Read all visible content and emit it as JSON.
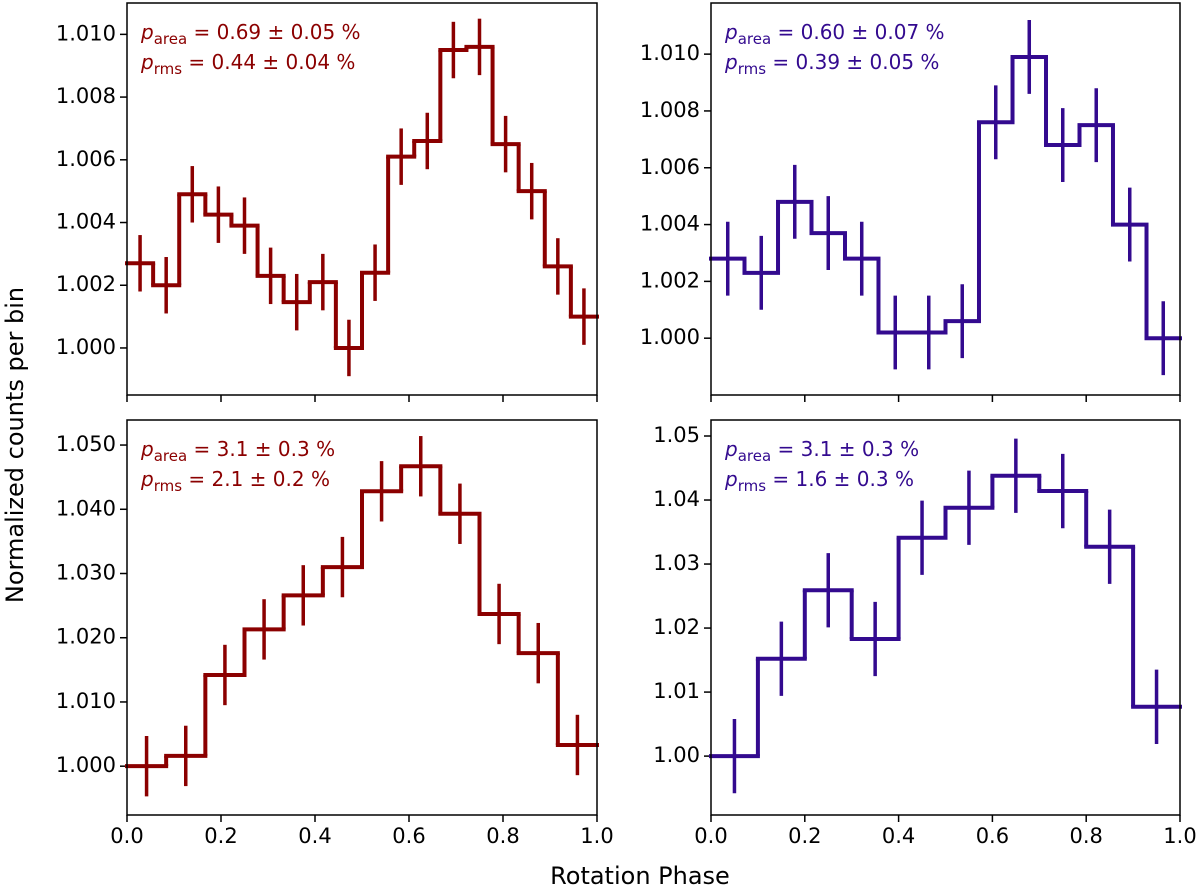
{
  "xlabel": "Rotation Phase",
  "ylabel": "Normalized counts per bin",
  "chart_data": [
    {
      "type": "histogram",
      "color": "#8b0000",
      "bins": [
        0,
        0.0556,
        0.1111,
        0.1667,
        0.2222,
        0.2778,
        0.3333,
        0.3889,
        0.4444,
        0.5,
        0.5556,
        0.6111,
        0.6667,
        0.7222,
        0.7778,
        0.8333,
        0.8889,
        0.9444,
        1
      ],
      "values": [
        1.0027,
        1.002,
        1.0049,
        1.00425,
        1.0039,
        1.0023,
        1.00146,
        1.0021,
        1.0,
        1.0024,
        1.0061,
        1.0066,
        1.0095,
        1.0096,
        1.0065,
        1.005,
        1.0026,
        1.001
      ],
      "errors": [
        0.0009,
        0.0009,
        0.0009,
        0.0009,
        0.0009,
        0.0009,
        0.0009,
        0.0009,
        0.0009,
        0.0009,
        0.0009,
        0.0009,
        0.0009,
        0.0009,
        0.0009,
        0.0009,
        0.0009,
        0.0009
      ],
      "xlim": [
        0,
        1
      ],
      "xticks": [
        0,
        0.2,
        0.4,
        0.6,
        0.8,
        1
      ],
      "xtick_labels": false,
      "ylim": [
        0.9985,
        1.011
      ],
      "yticks": [
        {
          "value": 1,
          "label": "1.000"
        },
        1.002,
        1.004,
        1.006,
        1.008,
        {
          "value": 1.01,
          "label": "1.010"
        }
      ],
      "annotations": [
        {
          "symbol": "p",
          "subscript": "area",
          "text": " = 0.69 ± 0.05 %"
        },
        {
          "symbol": "p",
          "subscript": "rms",
          "text": " = 0.44 ± 0.04 %"
        }
      ]
    },
    {
      "type": "histogram",
      "color": "#330a8f",
      "bins": [
        0,
        0.0714,
        0.1429,
        0.2143,
        0.2857,
        0.3571,
        0.4286,
        0.5,
        0.5714,
        0.6429,
        0.7143,
        0.7857,
        0.8571,
        0.9286,
        1
      ],
      "values": [
        1.0028,
        1.0023,
        1.0048,
        1.0037,
        1.0028,
        1.0002,
        1.0002,
        1.0006,
        1.0076,
        1.0099,
        1.0068,
        1.0075,
        1.004,
        1.0
      ],
      "errors": [
        0.0013,
        0.0013,
        0.0013,
        0.0013,
        0.0013,
        0.0013,
        0.0013,
        0.0013,
        0.0013,
        0.0013,
        0.0013,
        0.0013,
        0.0013,
        0.0013
      ],
      "xlim": [
        0,
        1
      ],
      "xticks": [
        0,
        0.2,
        0.4,
        0.6,
        0.8,
        1
      ],
      "xtick_labels": false,
      "ylim": [
        0.998,
        1.0118
      ],
      "yticks": [
        {
          "value": 1,
          "label": "1.000"
        },
        1.002,
        1.004,
        1.006,
        1.008,
        {
          "value": 1.01,
          "label": "1.010"
        }
      ],
      "annotations": [
        {
          "symbol": "p",
          "subscript": "area",
          "text": " = 0.60 ± 0.07 %"
        },
        {
          "symbol": "p",
          "subscript": "rms",
          "text": " = 0.39 ± 0.05 %"
        }
      ]
    },
    {
      "type": "histogram",
      "color": "#8b0000",
      "bins": [
        0,
        0.0833,
        0.1667,
        0.25,
        0.3333,
        0.4167,
        0.5,
        0.5833,
        0.6667,
        0.75,
        0.8333,
        0.9167,
        1
      ],
      "values": [
        1.0,
        1.0016,
        1.0142,
        1.0213,
        1.0266,
        1.031,
        1.0428,
        1.0467,
        1.0393,
        1.0237,
        1.0176,
        1.0033
      ],
      "errors": [
        0.0047,
        0.0047,
        0.0047,
        0.0047,
        0.0047,
        0.0047,
        0.0047,
        0.0047,
        0.0047,
        0.0047,
        0.0047,
        0.0047
      ],
      "xlim": [
        0,
        1
      ],
      "xticks": [
        {
          "value": 0,
          "label": "0.0"
        },
        0.2,
        0.4,
        0.6,
        0.8,
        {
          "value": 1,
          "label": "1.0"
        }
      ],
      "ylim": [
        0.9924,
        1.0539
      ],
      "yticks": [
        {
          "value": 1,
          "label": "1.000"
        },
        {
          "value": 1.01,
          "label": "1.010"
        },
        {
          "value": 1.02,
          "label": "1.020"
        },
        {
          "value": 1.03,
          "label": "1.030"
        },
        {
          "value": 1.04,
          "label": "1.040"
        },
        {
          "value": 1.05,
          "label": "1.050"
        }
      ],
      "annotations": [
        {
          "symbol": "p",
          "subscript": "area",
          "text": " = 3.1 ± 0.3 %"
        },
        {
          "symbol": "p",
          "subscript": "rms",
          "text": " = 2.1 ± 0.2 %"
        }
      ]
    },
    {
      "type": "histogram",
      "color": "#330a8f",
      "bins": [
        0,
        0.1,
        0.2,
        0.3,
        0.4,
        0.5,
        0.6,
        0.7,
        0.8,
        0.9,
        1
      ],
      "values": [
        1.0,
        1.0152,
        1.0259,
        1.0183,
        1.0341,
        1.0388,
        1.0438,
        1.0414,
        1.0327,
        1.0077
      ],
      "errors": [
        0.0058,
        0.0058,
        0.0058,
        0.0058,
        0.0058,
        0.0058,
        0.0058,
        0.0058,
        0.0058,
        0.0058
      ],
      "xlim": [
        0,
        1
      ],
      "xticks": [
        {
          "value": 0,
          "label": "0.0"
        },
        0.2,
        0.4,
        0.6,
        0.8,
        {
          "value": 1,
          "label": "1.0"
        }
      ],
      "ylim": [
        0.9908,
        1.0525
      ],
      "yticks": [
        {
          "value": 1,
          "label": "1.00"
        },
        1.01,
        1.02,
        1.03,
        1.04,
        1.05
      ],
      "annotations": [
        {
          "symbol": "p",
          "subscript": "area",
          "text": " = 3.1 ± 0.3 %"
        },
        {
          "symbol": "p",
          "subscript": "rms",
          "text": " = 1.6 ± 0.3 %"
        }
      ]
    }
  ]
}
